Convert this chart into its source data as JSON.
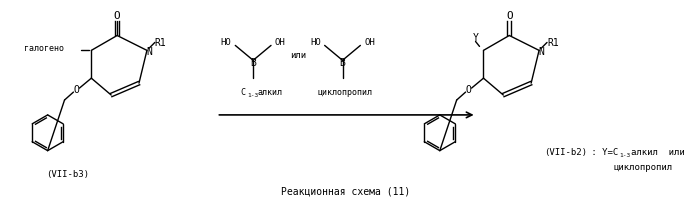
{
  "title": "Реакционная схема (11)",
  "background_color": "#ffffff",
  "text_color": "#000000",
  "fig_width": 6.97,
  "fig_height": 2.04,
  "dpi": 100,
  "font_family": "DejaVu Sans Mono",
  "label_vii_b3": "(VII-b3)",
  "label_vii_b2_line1": "(VII-b2) : Y=C",
  "label_vii_b2_sub": "1-3",
  "label_vii_b2_line2": "алкил  или",
  "label_vii_b2_line3": "циклопропил",
  "label_ili": "или",
  "label_c13alkyl_left": "C",
  "label_c13alkyl_left_sub": "1-3",
  "label_c13alkyl_left_rest": "алкил",
  "label_cyclopropyl": "циклопропил",
  "reaction_scheme_label": "Реакционная схема (11)"
}
